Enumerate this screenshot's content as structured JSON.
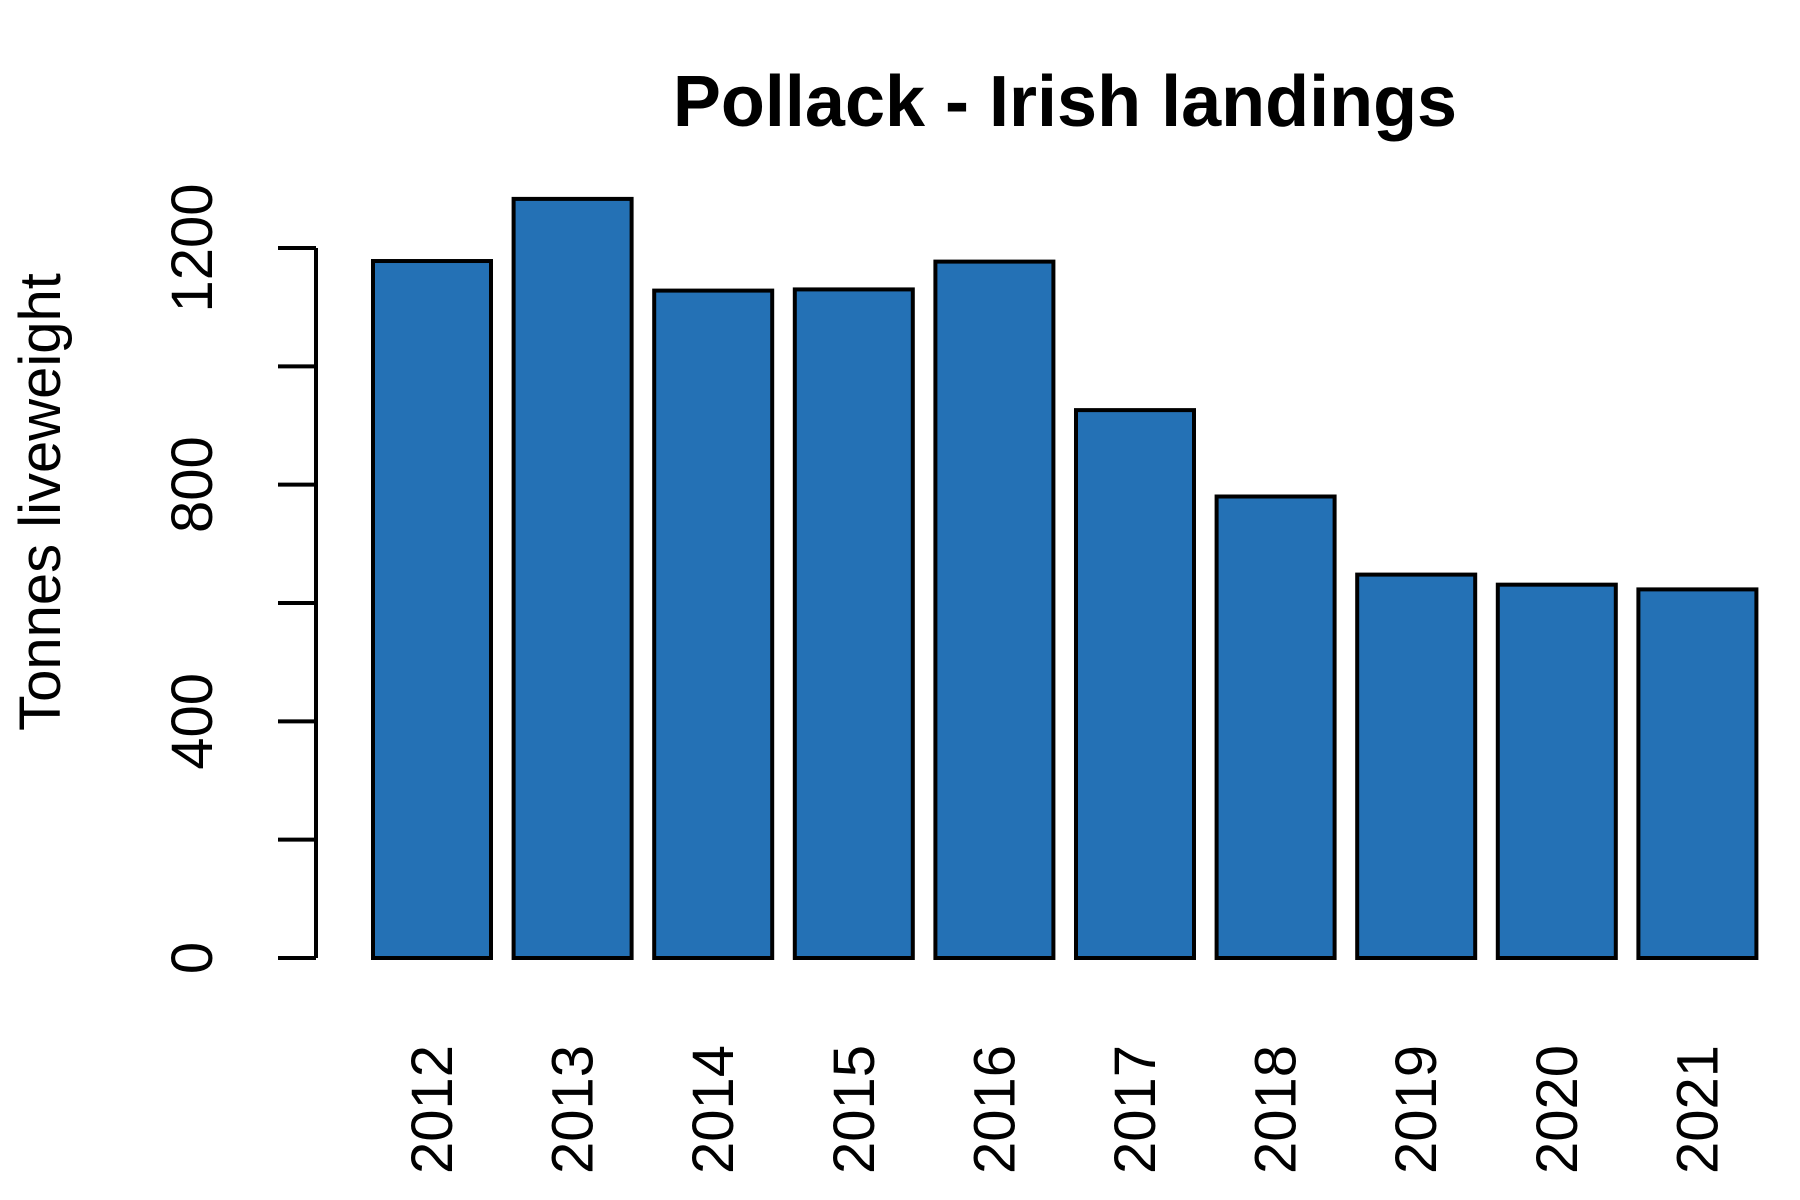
{
  "chart_data": {
    "type": "bar",
    "title": "Pollack - Irish landings",
    "xlabel": "",
    "ylabel": "Tonnes liveweight",
    "categories": [
      "2012",
      "2013",
      "2014",
      "2015",
      "2016",
      "2017",
      "2018",
      "2019",
      "2020",
      "2021"
    ],
    "values": [
      1178,
      1283,
      1128,
      1130,
      1177,
      926,
      780,
      648,
      631,
      623
    ],
    "ylim": [
      0,
      1200
    ],
    "yticks": [
      0,
      200,
      400,
      600,
      800,
      1000,
      1200
    ],
    "ytick_labels": [
      "0",
      "400",
      "800",
      "1200"
    ],
    "bar_color": "#2471b5",
    "grid": false,
    "legend": "none"
  }
}
